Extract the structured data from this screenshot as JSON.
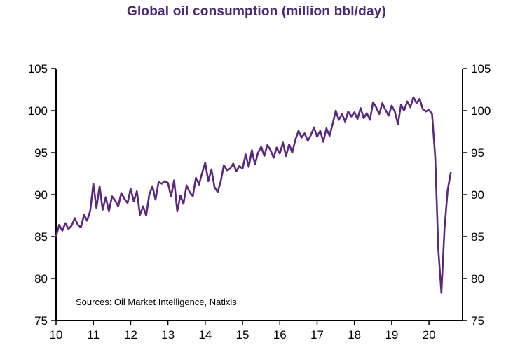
{
  "title": "Global oil consumption (million bbl/day)",
  "colors": {
    "title": "#4a2a75",
    "line": "#5b287f",
    "axis": "#000000",
    "tick_text": "#000000"
  },
  "chart_data": {
    "type": "line",
    "title": "Global oil consumption (million bbl/day)",
    "source": "Sources:  Oil Market Intelligence,  Natixis",
    "series_name": "Global oil consumption",
    "unit": "million bbl/day",
    "xlabel": "",
    "ylabel": "",
    "x_axis_note": "Years 2010-2020 shown as 10-20, monthly data",
    "x_start": 10.0,
    "x_step": 0.0833333,
    "xlim": [
      10,
      20.9
    ],
    "ylim": [
      75,
      105
    ],
    "x_ticks": [
      10,
      11,
      12,
      13,
      14,
      15,
      16,
      17,
      18,
      19,
      20
    ],
    "y_ticks": [
      75,
      80,
      85,
      90,
      95,
      100,
      105
    ],
    "grid": false,
    "legend": "none",
    "values": [
      85.0,
      86.4,
      85.7,
      86.6,
      85.9,
      86.3,
      87.2,
      86.4,
      86.1,
      87.6,
      86.9,
      88.1,
      91.3,
      88.4,
      91.0,
      88.2,
      89.7,
      88.0,
      89.8,
      89.3,
      88.6,
      90.2,
      89.5,
      89.0,
      90.7,
      89.2,
      90.4,
      87.6,
      88.6,
      87.5,
      90.0,
      91.0,
      89.4,
      91.5,
      91.3,
      91.6,
      91.4,
      89.8,
      91.7,
      88.0,
      89.9,
      88.9,
      91.1,
      90.3,
      89.8,
      92.0,
      91.2,
      92.6,
      93.8,
      91.6,
      93.0,
      90.9,
      90.3,
      91.6,
      93.5,
      92.9,
      93.1,
      93.7,
      92.8,
      93.4,
      93.1,
      94.8,
      93.3,
      95.3,
      93.6,
      95.0,
      95.7,
      94.6,
      95.9,
      95.3,
      94.4,
      95.6,
      94.9,
      96.2,
      94.6,
      96.0,
      95.0,
      96.5,
      97.6,
      96.8,
      97.3,
      96.4,
      97.1,
      98.0,
      96.9,
      97.6,
      96.3,
      97.9,
      97.0,
      98.4,
      100.0,
      98.9,
      99.6,
      98.7,
      99.9,
      99.3,
      99.8,
      99.0,
      100.3,
      99.1,
      99.7,
      98.9,
      101.0,
      100.4,
      99.6,
      100.9,
      100.1,
      99.4,
      100.6,
      99.9,
      98.4,
      100.7,
      100.0,
      101.1,
      100.4,
      101.6,
      100.9,
      101.4,
      100.2,
      99.9,
      100.1,
      99.6,
      94.5,
      83.5,
      78.3,
      86.0,
      90.5,
      92.6
    ]
  }
}
